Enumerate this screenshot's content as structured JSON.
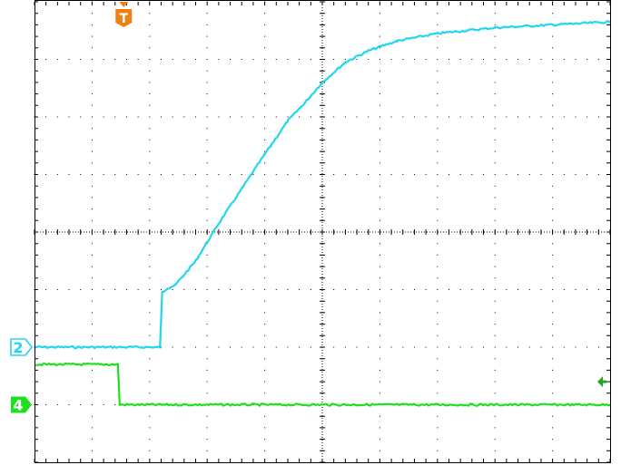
{
  "display": {
    "background": "#ffffff",
    "grid_color": "#000000",
    "divisions": {
      "horizontal": 10,
      "vertical": 8
    },
    "minor_ticks_per_division": 5
  },
  "trigger": {
    "label": "T",
    "color": "#f07f14",
    "level_indicator_color": "#22a822",
    "icon": "trigger-position-marker"
  },
  "channels": [
    {
      "label": "2",
      "color": "#22d6f0",
      "marker_style": "outline",
      "ground_level_div": -2.0,
      "trace": [
        [
          0,
          -2.0
        ],
        [
          2.18,
          -2.0
        ],
        [
          2.22,
          -1.05
        ],
        [
          2.3,
          -0.98
        ],
        [
          2.45,
          -0.92
        ],
        [
          2.8,
          -0.5
        ],
        [
          3.2,
          0.15
        ],
        [
          3.6,
          0.75
        ],
        [
          4.0,
          1.35
        ],
        [
          4.4,
          1.93
        ],
        [
          4.7,
          2.25
        ],
        [
          5.0,
          2.6
        ],
        [
          5.4,
          2.95
        ],
        [
          5.8,
          3.15
        ],
        [
          6.3,
          3.32
        ],
        [
          7.0,
          3.45
        ],
        [
          8.0,
          3.55
        ],
        [
          9.0,
          3.6
        ],
        [
          10.0,
          3.65
        ]
      ]
    },
    {
      "label": "4",
      "color": "#1fe01f",
      "marker_style": "filled",
      "ground_level_div": -3.0,
      "trace": [
        [
          0,
          -2.3
        ],
        [
          1.45,
          -2.3
        ],
        [
          1.48,
          -3.0
        ],
        [
          10.0,
          -3.0
        ]
      ]
    }
  ]
}
